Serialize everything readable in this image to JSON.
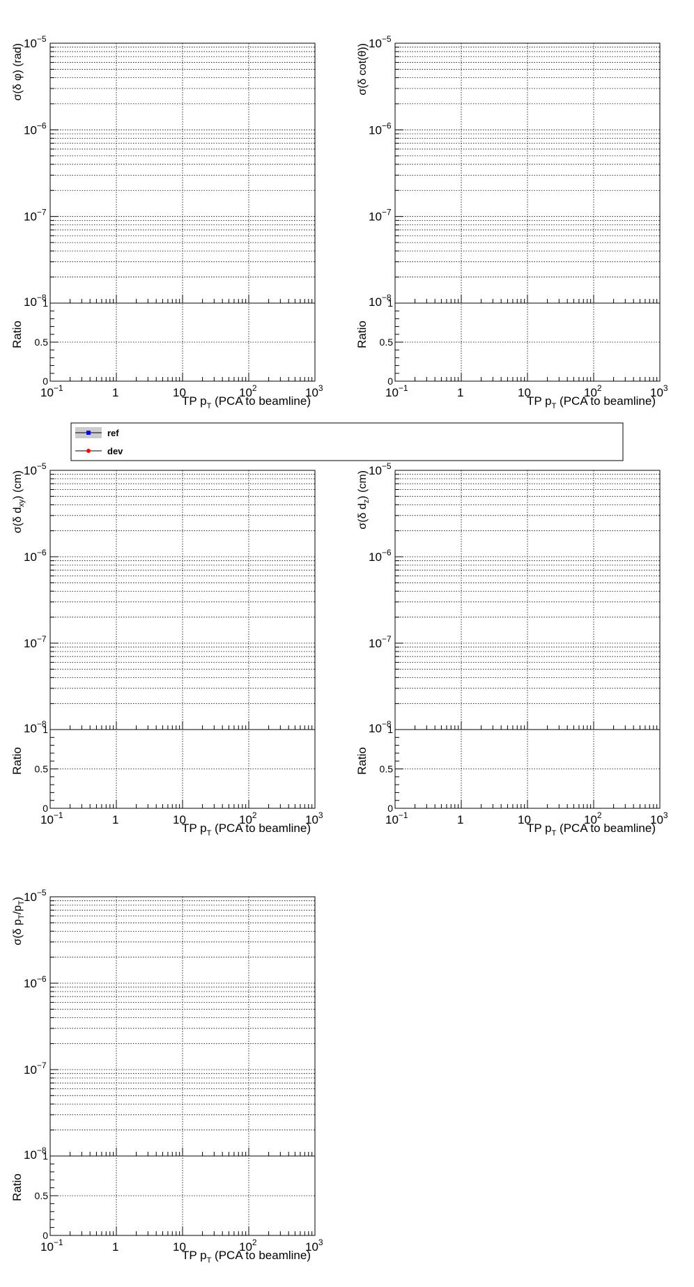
{
  "chart_data": [
    {
      "type": "line",
      "panel": "sigma_dphi",
      "ylabel": "σ(δ φ) (rad)",
      "xlabel": "TP pT (PCA to beamline)",
      "xscale": "log",
      "yscale": "log",
      "xlim": [
        0.1,
        1000
      ],
      "ylim": [
        1e-08,
        1e-05
      ],
      "ratio_ylabel": "Ratio",
      "ratio_ylim": [
        0,
        1
      ],
      "grid": true,
      "series": []
    },
    {
      "type": "line",
      "panel": "sigma_dcottheta",
      "ylabel": "σ(δ cot(θ))",
      "xlabel": "TP pT (PCA to beamline)",
      "xscale": "log",
      "yscale": "log",
      "xlim": [
        0.1,
        1000
      ],
      "ylim": [
        1e-08,
        1e-05
      ],
      "ratio_ylabel": "Ratio",
      "ratio_ylim": [
        0,
        1
      ],
      "grid": true,
      "series": []
    },
    {
      "type": "line",
      "panel": "sigma_dxy",
      "ylabel": "σ(δ dxy) (cm)",
      "xlabel": "TP pT (PCA to beamline)",
      "xscale": "log",
      "yscale": "log",
      "xlim": [
        0.1,
        1000
      ],
      "ylim": [
        1e-08,
        1e-05
      ],
      "ratio_ylabel": "Ratio",
      "ratio_ylim": [
        0,
        1
      ],
      "grid": true,
      "series": []
    },
    {
      "type": "line",
      "panel": "sigma_dz",
      "ylabel": "σ(δ dz) (cm)",
      "xlabel": "TP pT (PCA to beamline)",
      "xscale": "log",
      "yscale": "log",
      "xlim": [
        0.1,
        1000
      ],
      "ylim": [
        1e-08,
        1e-05
      ],
      "ratio_ylabel": "Ratio",
      "ratio_ylim": [
        0,
        1
      ],
      "grid": true,
      "series": []
    },
    {
      "type": "line",
      "panel": "sigma_dpt",
      "ylabel": "σ(δ pT/pT)",
      "xlabel": "TP pT (PCA to beamline)",
      "xscale": "log",
      "yscale": "log",
      "xlim": [
        0.1,
        1000
      ],
      "ylim": [
        1e-08,
        1e-05
      ],
      "ratio_ylabel": "Ratio",
      "ratio_ylim": [
        0,
        1
      ],
      "grid": true,
      "series": []
    }
  ],
  "legend": {
    "entries": [
      {
        "label": "ref",
        "color": "#0000ff"
      },
      {
        "label": "dev",
        "color": "#ff0000"
      }
    ]
  },
  "x_tick_labels": [
    "10",
    "1",
    "10",
    "10",
    "10"
  ],
  "x_tick_exponents": [
    "−1",
    "",
    "",
    "2",
    "3"
  ],
  "y_tick_exponents": [
    "−5",
    "−6",
    "−7",
    "−8"
  ],
  "ratio_ticks": [
    "1",
    "0.5",
    "0"
  ]
}
